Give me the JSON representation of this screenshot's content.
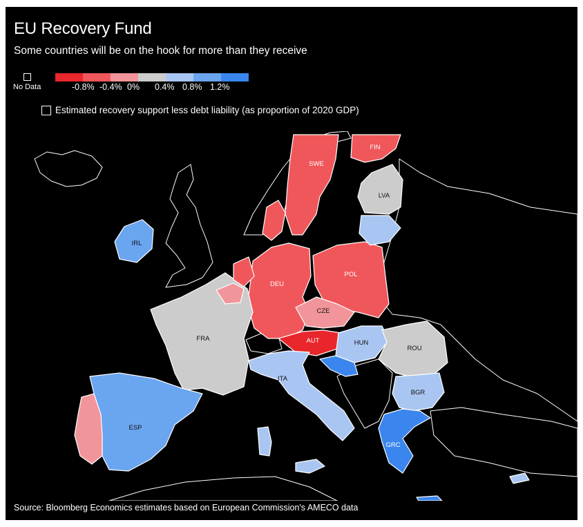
{
  "title": "EU Recovery Fund",
  "subtitle": "Some countries will be on the hook for more than they receive",
  "legend": {
    "no_data_label": "No Data",
    "ramp_colors": [
      "#e8262b",
      "#f0575b",
      "#f2959a",
      "#cccccc",
      "#a9c6f2",
      "#6aa5f0",
      "#3a86ee"
    ],
    "ticks": [
      "-0.8%",
      "-0.4%",
      "0%",
      "0.4%",
      "0.8%",
      "1.2%"
    ]
  },
  "note": "Estimated recovery support less debt liability (as proportion of 2020 GDP)",
  "source": "Source: Bloomberg Economics estimates based on European Commission's AMECO data",
  "colors": {
    "background": "#000000",
    "non_eu_fill": "#000000",
    "border": "#ffffff"
  },
  "countries": [
    {
      "code": "SWE",
      "fill": "#f0575b"
    },
    {
      "code": "FIN",
      "fill": "#f0575b"
    },
    {
      "code": "LVA",
      "fill": "#cccccc"
    },
    {
      "code": "IRL",
      "fill": "#6aa5f0"
    },
    {
      "code": "DEU",
      "fill": "#f0575b"
    },
    {
      "code": "POL",
      "fill": "#f0575b"
    },
    {
      "code": "CZE",
      "fill": "#f2959a"
    },
    {
      "code": "AUT",
      "fill": "#e8262b"
    },
    {
      "code": "FRA",
      "fill": "#cccccc"
    },
    {
      "code": "HUN",
      "fill": "#a9c6f2"
    },
    {
      "code": "ROU",
      "fill": "#cccccc"
    },
    {
      "code": "ITA",
      "fill": "#a9c6f2"
    },
    {
      "code": "BGR",
      "fill": "#a9c6f2"
    },
    {
      "code": "ESP",
      "fill": "#6aa5f0"
    },
    {
      "code": "GRC",
      "fill": "#3a86ee"
    }
  ]
}
